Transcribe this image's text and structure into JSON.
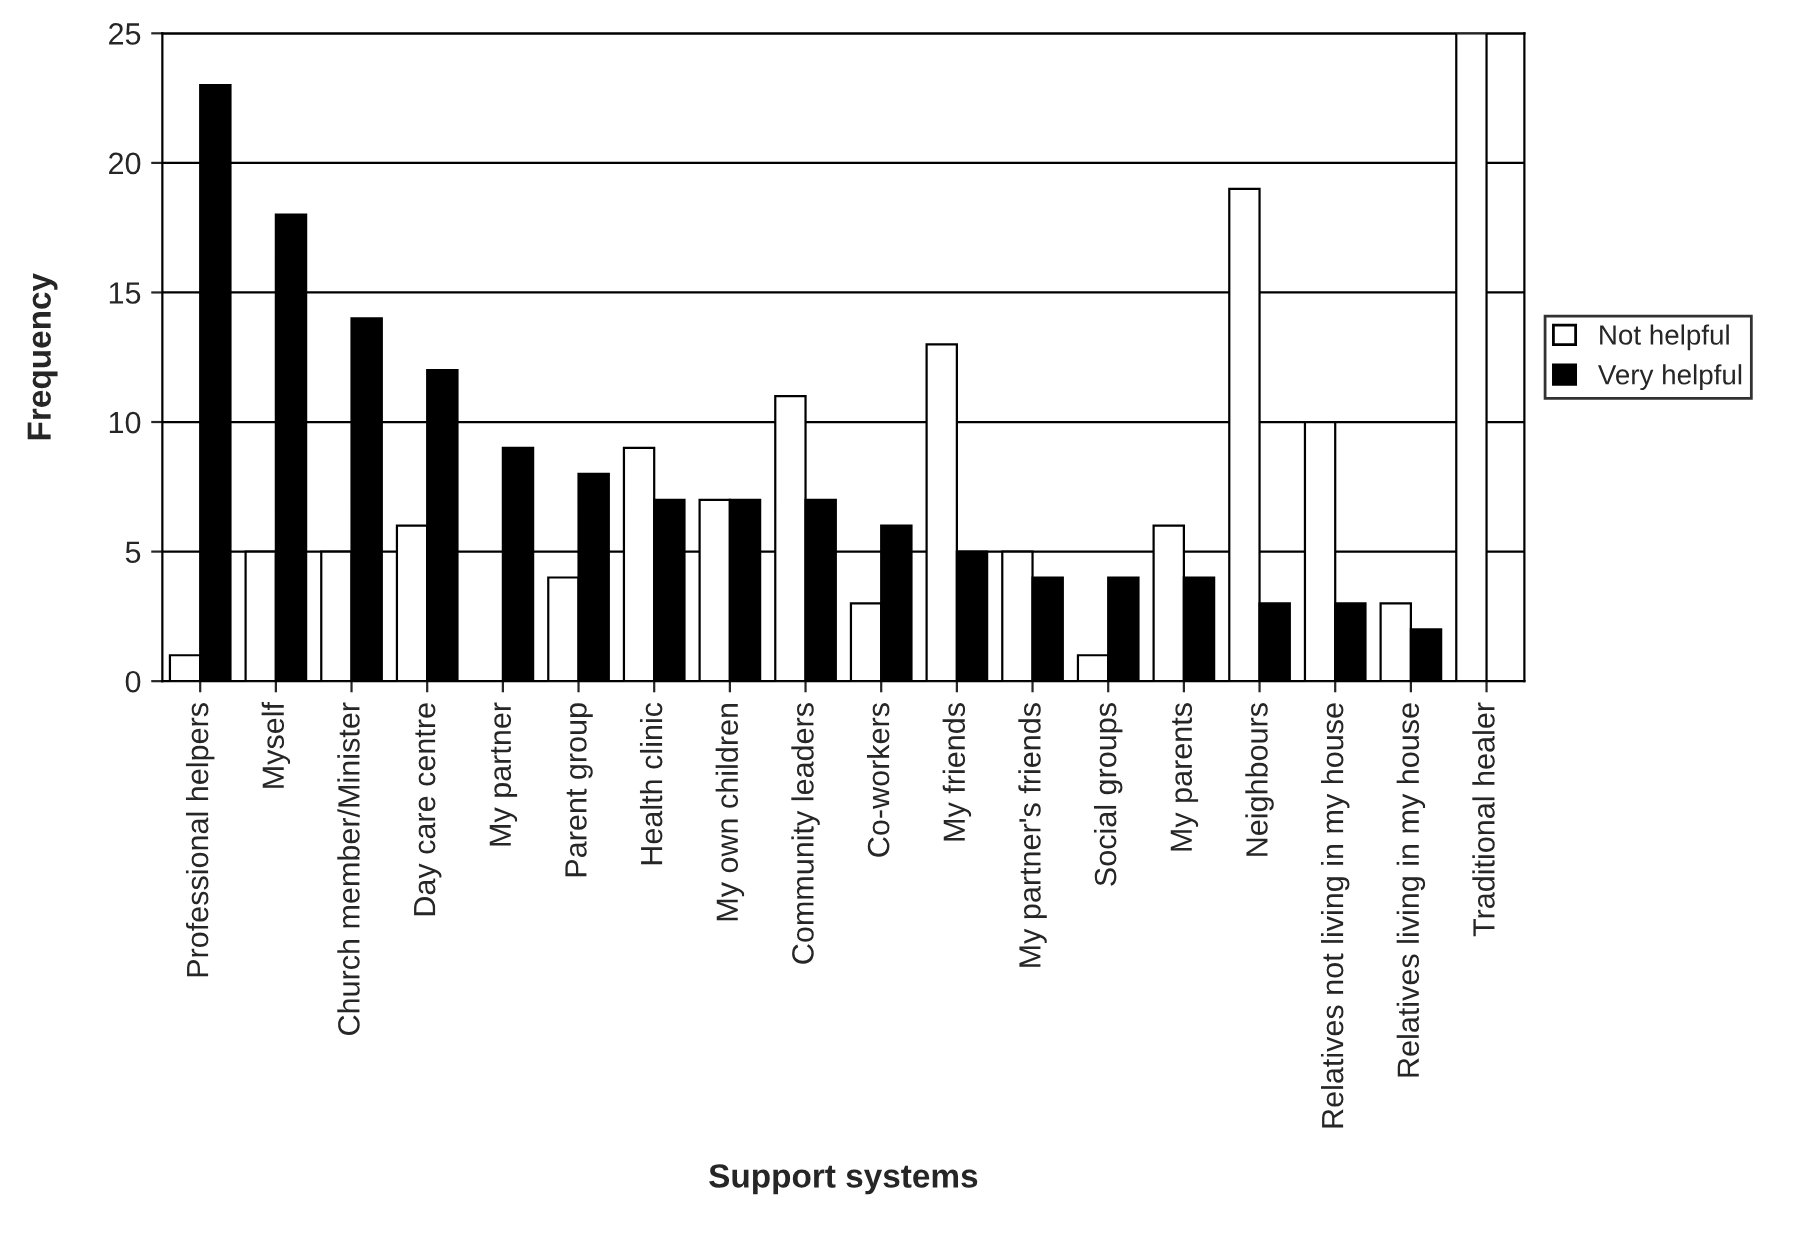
{
  "chart_data": {
    "type": "bar",
    "xlabel": "Support systems",
    "ylabel": "Frequency",
    "categories": [
      "Professional helpers",
      "Myself",
      "Church member/Minister",
      "Day care centre",
      "My partner",
      "Parent group",
      "Health clinic",
      "My own children",
      "Community leaders",
      "Co-workers",
      "My friends",
      "My partner's friends",
      "Social groups",
      "My parents",
      "Neighbours",
      "Relatives not living in my house",
      "Relatives living in my house",
      "Traditional healer"
    ],
    "series": [
      {
        "name": "Not helpful",
        "color": "#ffffff",
        "values": [
          1,
          5,
          5,
          6,
          null,
          4,
          9,
          7,
          11,
          3,
          13,
          5,
          1,
          6,
          19,
          10,
          3,
          25
        ]
      },
      {
        "name": "Very helpful",
        "color": "#000000",
        "values": [
          23,
          18,
          14,
          12,
          9,
          8,
          7,
          7,
          7,
          6,
          5,
          4,
          4,
          4,
          3,
          3,
          2,
          null
        ]
      }
    ],
    "ylim": [
      0,
      25
    ],
    "yticks": [
      0,
      5,
      10,
      15,
      20,
      25
    ],
    "grid": "y",
    "legend": "right"
  }
}
